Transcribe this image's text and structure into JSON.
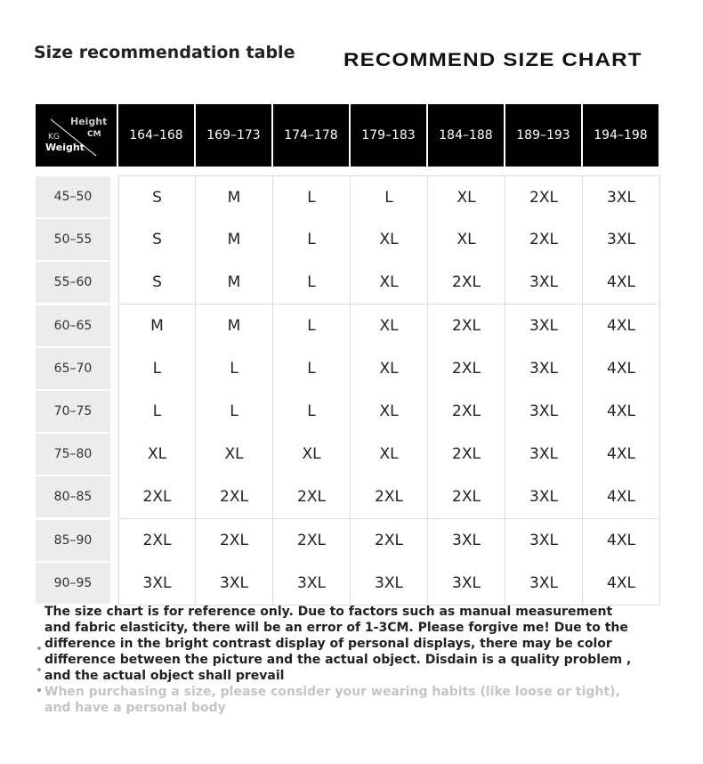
{
  "title_left": "Size recommendation table",
  "title_right": "RECOMMEND SIZE CHART",
  "corner": {
    "height": "Height",
    "cm": "CM",
    "kg": "KG",
    "weight": "Weight"
  },
  "heights": [
    "164–168",
    "169–173",
    "174–178",
    "179–183",
    "184–188",
    "189–193",
    "194–198"
  ],
  "rows": [
    {
      "weight": "45–50",
      "sizes": [
        "S",
        "M",
        "L",
        "L",
        "XL",
        "2XL",
        "3XL"
      ]
    },
    {
      "weight": "50–55",
      "sizes": [
        "S",
        "M",
        "L",
        "XL",
        "XL",
        "2XL",
        "3XL"
      ]
    },
    {
      "weight": "55–60",
      "sizes": [
        "S",
        "M",
        "L",
        "XL",
        "2XL",
        "3XL",
        "4XL"
      ]
    },
    {
      "weight": "60–65",
      "sizes": [
        "M",
        "M",
        "L",
        "XL",
        "2XL",
        "3XL",
        "4XL"
      ]
    },
    {
      "weight": "65–70",
      "sizes": [
        "L",
        "L",
        "L",
        "XL",
        "2XL",
        "3XL",
        "4XL"
      ]
    },
    {
      "weight": "70–75",
      "sizes": [
        "L",
        "L",
        "L",
        "XL",
        "2XL",
        "3XL",
        "4XL"
      ]
    },
    {
      "weight": "75–80",
      "sizes": [
        "XL",
        "XL",
        "XL",
        "XL",
        "2XL",
        "3XL",
        "4XL"
      ]
    },
    {
      "weight": "80–85",
      "sizes": [
        "2XL",
        "2XL",
        "2XL",
        "2XL",
        "2XL",
        "3XL",
        "4XL"
      ]
    },
    {
      "weight": "85–90",
      "sizes": [
        "2XL",
        "2XL",
        "2XL",
        "2XL",
        "3XL",
        "3XL",
        "4XL"
      ]
    },
    {
      "weight": "90–95",
      "sizes": [
        "3XL",
        "3XL",
        "3XL",
        "3XL",
        "3XL",
        "3XL",
        "4XL"
      ]
    }
  ],
  "note_main": "The size chart is for reference only. Due to factors such as manual measurement and fabric elasticity, there will be an error of 1-3CM. Please forgive me! Due to the difference in the bright contrast display of personal displays, there may be color difference between the picture and the actual object. Disdain is a quality problem , and the actual object shall prevail",
  "note_secondary": "When purchasing a size, please consider your wearing habits (like loose or tight), and have a personal body"
}
